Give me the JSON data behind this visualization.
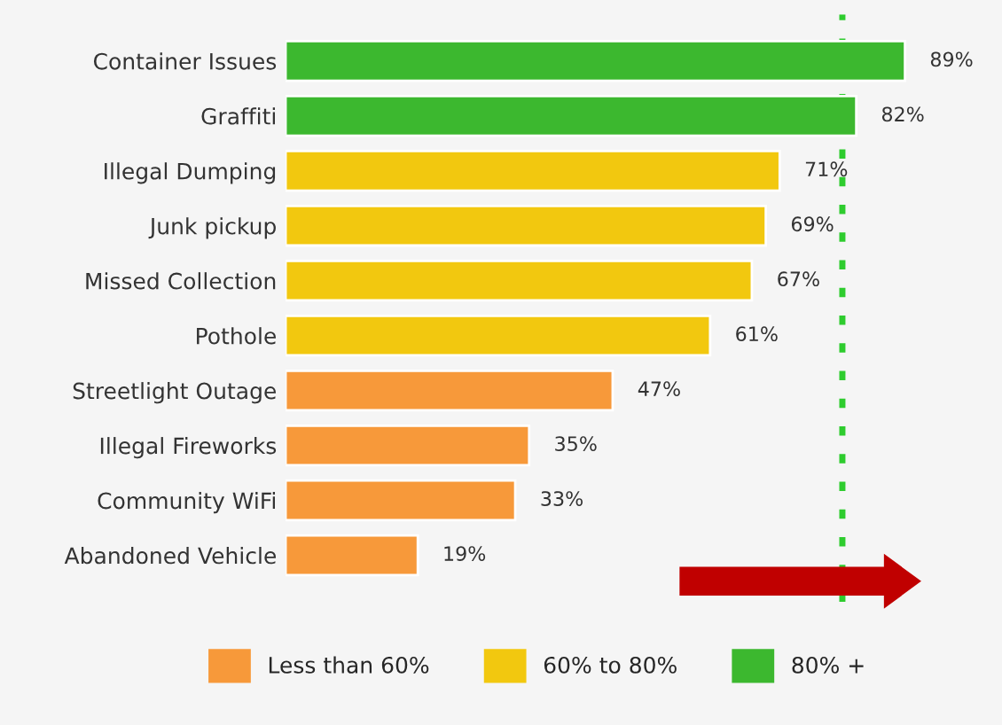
{
  "chart_data": {
    "type": "bar",
    "orientation": "horizontal",
    "categories": [
      "Container Issues",
      "Graffiti",
      "Illegal Dumping",
      "Junk pickup",
      "Missed Collection",
      "Pothole",
      "Streetlight Outage",
      "Illegal Fireworks",
      "Community WiFi",
      "Abandoned Vehicle"
    ],
    "series": [
      {
        "name": "Less than 60%",
        "color": "#f7993a",
        "values": [
          null,
          null,
          null,
          null,
          null,
          null,
          47,
          35,
          33,
          19
        ],
        "value_labels": [
          null,
          null,
          null,
          null,
          null,
          null,
          "47%",
          "35%",
          "33%",
          "19%"
        ]
      },
      {
        "name": "60% to 80%",
        "color": "#f2c80f",
        "values": [
          null,
          null,
          71,
          69,
          67,
          61,
          null,
          null,
          null,
          null
        ],
        "value_labels": [
          null,
          null,
          "71%",
          "69%",
          "67%",
          "61%",
          null,
          null,
          null,
          null
        ]
      },
      {
        "name": "80% +",
        "color": "#3cb82f",
        "values": [
          89,
          82,
          null,
          null,
          null,
          null,
          null,
          null,
          null,
          null
        ],
        "value_labels": [
          "89%",
          "82%",
          null,
          null,
          null,
          null,
          null,
          null,
          null,
          null
        ]
      }
    ],
    "tick_labels": "y",
    "grid": false,
    "legend": "bottom",
    "ref_lines": [
      {
        "axis": "x",
        "value": 80,
        "color": "#2ecc2e",
        "line_style": "dotted"
      }
    ]
  }
}
